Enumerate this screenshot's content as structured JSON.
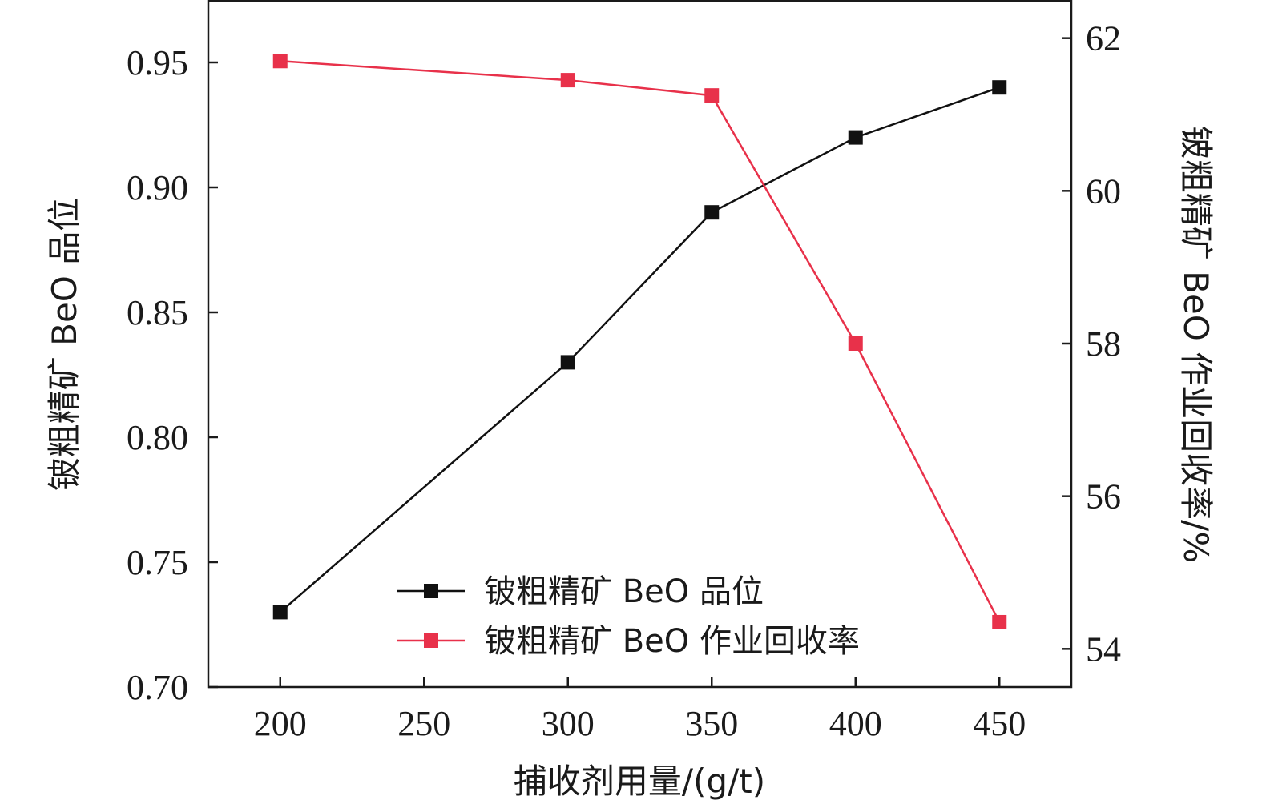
{
  "chart_data": {
    "type": "line",
    "x": [
      200,
      300,
      350,
      400,
      450
    ],
    "xlabel": "捕收剂用量/(g/t)",
    "xlim": [
      175,
      475
    ],
    "xticks": [
      "200",
      "250",
      "300",
      "350",
      "400",
      "450"
    ],
    "xtick_values": [
      200,
      250,
      300,
      350,
      400,
      450
    ],
    "ylabel_left": "铍粗精矿 BeO 品位",
    "ylim_left": [
      0.7,
      0.975
    ],
    "yticks_left": [
      "0.70",
      "0.75",
      "0.80",
      "0.85",
      "0.90",
      "0.95"
    ],
    "ytick_values_left": [
      0.7,
      0.75,
      0.8,
      0.85,
      0.9,
      0.95
    ],
    "ylabel_right": "铍粗精矿 BeO 作业回收率/%",
    "ylim_right": [
      53.5,
      62.5
    ],
    "yticks_right": [
      "54",
      "56",
      "58",
      "60",
      "62"
    ],
    "ytick_values_right": [
      54,
      56,
      58,
      60,
      62
    ],
    "grid": false,
    "legend_position": "bottom-center",
    "series": [
      {
        "name": "铍粗精矿 BeO 品位",
        "axis": "left",
        "color": "#111111",
        "marker": "square",
        "values": [
          0.73,
          0.83,
          0.89,
          0.92,
          0.94
        ]
      },
      {
        "name": "铍粗精矿 BeO 作业回收率",
        "axis": "right",
        "color": "#e8314a",
        "marker": "square",
        "values": [
          61.7,
          61.45,
          61.25,
          58.0,
          54.35
        ]
      }
    ]
  }
}
